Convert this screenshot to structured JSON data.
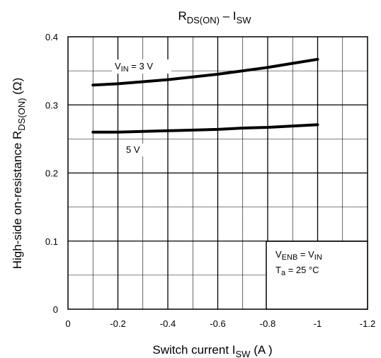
{
  "chart_data": {
    "type": "line",
    "title": {
      "main": "R",
      "sub": "DS(ON)",
      "sep": " – I",
      "sub2": "SW"
    },
    "xlabel": {
      "main": "Switch current   I",
      "sub": "SW",
      "unit": "     (A )"
    },
    "ylabel": {
      "main": "High-side on-resistance   R",
      "sub": "DS(ON)",
      "unit": "    (Ω)"
    },
    "xlim": [
      0,
      -1.2
    ],
    "ylim": [
      0,
      0.4
    ],
    "x_ticks": [
      0,
      -0.2,
      -0.4,
      -0.6,
      -0.8,
      -1,
      -1.2
    ],
    "x_tick_labels": [
      "0",
      "-0.2",
      "-0.4",
      "-0.6",
      "-0.8",
      "-1",
      "-1.2"
    ],
    "y_ticks": [
      0,
      0.1,
      0.2,
      0.3,
      0.4
    ],
    "y_tick_labels": [
      "0",
      "0.1",
      "0.2",
      "0.3",
      "0.4"
    ],
    "grid": true,
    "series": [
      {
        "name": {
          "main": "V",
          "sub": "IN",
          "rest": " = 3 V"
        },
        "x": [
          -0.1,
          -0.2,
          -0.3,
          -0.4,
          -0.5,
          -0.6,
          -0.7,
          -0.8,
          -0.9,
          -1.0
        ],
        "y": [
          0.329,
          0.331,
          0.334,
          0.337,
          0.341,
          0.345,
          0.35,
          0.355,
          0.361,
          0.367
        ]
      },
      {
        "name": {
          "main": "5 V"
        },
        "x": [
          -0.1,
          -0.2,
          -0.3,
          -0.4,
          -0.5,
          -0.6,
          -0.7,
          -0.8,
          -0.9,
          -1.0
        ],
        "y": [
          0.26,
          0.26,
          0.261,
          0.262,
          0.263,
          0.264,
          0.266,
          0.267,
          0.269,
          0.271
        ]
      }
    ],
    "annotation": {
      "line1": {
        "main": "V",
        "sub": "ENB",
        "mid": " = V",
        "sub2": "IN"
      },
      "line2": {
        "main": "T",
        "sub": "a",
        "rest": " = 25 °C"
      }
    }
  }
}
